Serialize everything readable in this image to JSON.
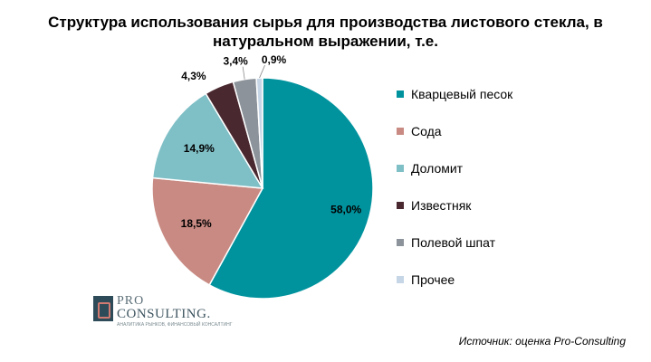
{
  "chart_data": {
    "type": "pie",
    "title": "Структура использования сырья для производства листового стекла, в натуральном выражении, т.е.",
    "title_lines": [
      "Структура использования сырья для производства листового стекла, в",
      "натуральном выражении, т.е."
    ],
    "legend_position": "right",
    "slices": [
      {
        "name": "Кварцевый песок",
        "value": 58.0,
        "label": "58,0%",
        "color": "#00939e"
      },
      {
        "name": "Сода",
        "value": 18.5,
        "label": "18,5%",
        "color": "#c88a82"
      },
      {
        "name": "Доломит",
        "value": 14.9,
        "label": "14,9%",
        "color": "#7fbfc6"
      },
      {
        "name": "Известняк",
        "value": 4.3,
        "label": "4,3%",
        "color": "#4a2830"
      },
      {
        "name": "Полевой шпат",
        "value": 3.4,
        "label": "3,4%",
        "color": "#8c939a"
      },
      {
        "name": "Прочее",
        "value": 0.9,
        "label": "0,9%",
        "color": "#c6d6e6"
      }
    ]
  },
  "logo": {
    "line1": "PRO",
    "line2": "CONSULTING.",
    "tagline": "АНАЛИТИКА РЫНКОВ, ФИНАНСОВЫЙ КОНСАЛТИНГ"
  },
  "source": "Источник: оценка Pro-Consulting"
}
